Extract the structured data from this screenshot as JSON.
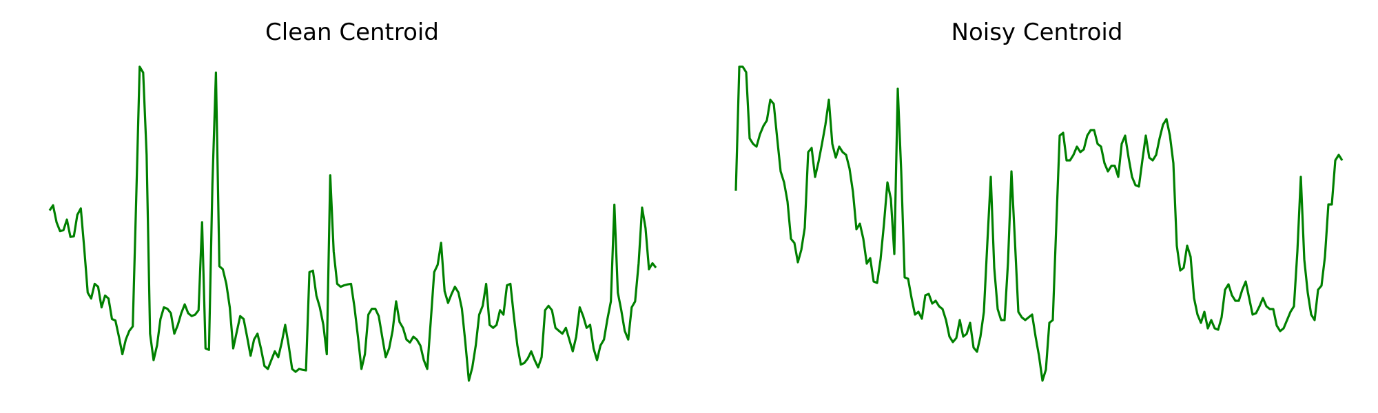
{
  "chart_data": [
    {
      "type": "line",
      "title": "Clean Centroid",
      "xlabel": "",
      "ylabel": "",
      "axes_visible": false,
      "grid": false,
      "color": "#008000",
      "y": [
        0.51,
        0.528,
        0.47,
        0.44,
        0.443,
        0.479,
        0.42,
        0.422,
        0.495,
        0.517,
        0.38,
        0.23,
        0.21,
        0.26,
        0.25,
        0.18,
        0.22,
        0.21,
        0.14,
        0.135,
        0.08,
        0.02,
        0.07,
        0.1,
        0.115,
        0.55,
        1.0,
        0.98,
        0.7,
        0.09,
        0.0,
        0.05,
        0.14,
        0.18,
        0.175,
        0.16,
        0.09,
        0.12,
        0.16,
        0.19,
        0.16,
        0.15,
        0.155,
        0.17,
        0.47,
        0.04,
        0.035,
        0.6,
        0.98,
        0.32,
        0.31,
        0.26,
        0.18,
        0.04,
        0.095,
        0.15,
        0.14,
        0.08,
        0.015,
        0.07,
        0.09,
        0.04,
        -0.02,
        -0.03,
        0.0,
        0.03,
        0.01,
        0.06,
        0.12,
        0.05,
        -0.03,
        -0.04,
        -0.03,
        -0.033,
        -0.035,
        0.3,
        0.305,
        0.22,
        0.18,
        0.12,
        0.02,
        0.63,
        0.37,
        0.26,
        0.25,
        0.255,
        0.258,
        0.26,
        0.18,
        0.08,
        -0.03,
        0.02,
        0.155,
        0.175,
        0.175,
        0.15,
        0.08,
        0.01,
        0.04,
        0.1,
        0.2,
        0.13,
        0.11,
        0.07,
        0.06,
        0.08,
        0.07,
        0.05,
        0.0,
        -0.03,
        0.13,
        0.3,
        0.325,
        0.4,
        0.235,
        0.195,
        0.225,
        0.25,
        0.23,
        0.175,
        0.06,
        -0.07,
        -0.025,
        0.05,
        0.155,
        0.185,
        0.26,
        0.12,
        0.11,
        0.12,
        0.17,
        0.155,
        0.255,
        0.26,
        0.15,
        0.05,
        -0.015,
        -0.01,
        0.005,
        0.03,
        0.0,
        -0.025,
        0.01,
        0.17,
        0.185,
        0.17,
        0.11,
        0.1,
        0.09,
        0.11,
        0.07,
        0.03,
        0.08,
        0.18,
        0.15,
        0.11,
        0.12,
        0.04,
        0.0,
        0.05,
        0.07,
        0.14,
        0.2,
        0.53,
        0.23,
        0.17,
        0.1,
        0.07,
        0.18,
        0.2,
        0.33,
        0.52,
        0.45,
        0.31,
        0.33,
        0.315
      ]
    },
    {
      "type": "line",
      "title": "Noisy Centroid",
      "xlabel": "",
      "ylabel": "",
      "axes_visible": false,
      "grid": false,
      "color": "#008000",
      "y": [
        0.53,
        0.98,
        0.98,
        0.96,
        0.72,
        0.7,
        0.69,
        0.735,
        0.765,
        0.785,
        0.86,
        0.845,
        0.72,
        0.6,
        0.56,
        0.49,
        0.355,
        0.34,
        0.27,
        0.315,
        0.395,
        0.67,
        0.685,
        0.58,
        0.635,
        0.7,
        0.77,
        0.86,
        0.7,
        0.65,
        0.69,
        0.67,
        0.66,
        0.61,
        0.525,
        0.39,
        0.41,
        0.355,
        0.265,
        0.285,
        0.2,
        0.195,
        0.28,
        0.41,
        0.56,
        0.5,
        0.3,
        0.9,
        0.6,
        0.215,
        0.21,
        0.14,
        0.08,
        0.09,
        0.065,
        0.15,
        0.155,
        0.12,
        0.13,
        0.11,
        0.1,
        0.06,
        0.0,
        -0.02,
        -0.005,
        0.06,
        0.0,
        0.01,
        0.05,
        -0.04,
        -0.055,
        0.0,
        0.09,
        0.34,
        0.58,
        0.25,
        0.1,
        0.06,
        0.06,
        0.27,
        0.6,
        0.35,
        0.09,
        0.07,
        0.06,
        0.07,
        0.08,
        0.0,
        -0.07,
        -0.16,
        -0.12,
        0.05,
        0.06,
        0.4,
        0.73,
        0.74,
        0.64,
        0.64,
        0.66,
        0.69,
        0.67,
        0.68,
        0.73,
        0.75,
        0.75,
        0.7,
        0.69,
        0.63,
        0.6,
        0.62,
        0.62,
        0.58,
        0.7,
        0.73,
        0.65,
        0.58,
        0.55,
        0.545,
        0.64,
        0.73,
        0.65,
        0.64,
        0.66,
        0.72,
        0.77,
        0.79,
        0.73,
        0.63,
        0.33,
        0.24,
        0.25,
        0.33,
        0.29,
        0.14,
        0.08,
        0.05,
        0.09,
        0.03,
        0.06,
        0.03,
        0.025,
        0.07,
        0.17,
        0.19,
        0.15,
        0.13,
        0.13,
        0.17,
        0.2,
        0.14,
        0.08,
        0.085,
        0.11,
        0.14,
        0.11,
        0.1,
        0.1,
        0.04,
        0.02,
        0.03,
        0.06,
        0.09,
        0.11,
        0.31,
        0.58,
        0.28,
        0.16,
        0.08,
        0.06,
        0.17,
        0.185,
        0.29,
        0.48,
        0.48,
        0.64,
        0.66,
        0.64
      ]
    }
  ]
}
